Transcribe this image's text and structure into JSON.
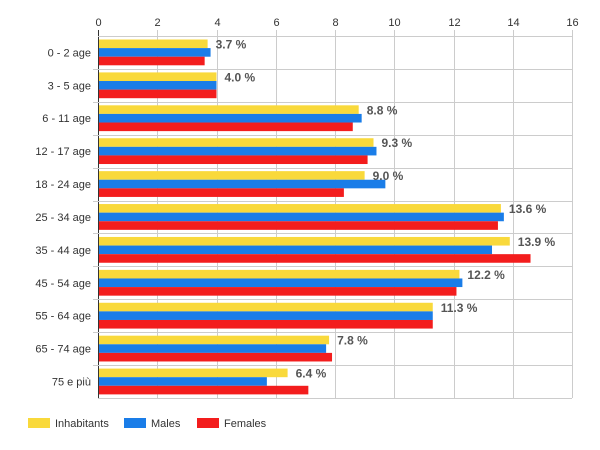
{
  "chart_data": {
    "type": "bar",
    "orientation": "horizontal",
    "categories": [
      "0 - 2 age",
      "3 - 5 age",
      "6 - 11 age",
      "12 - 17 age",
      "18 - 24 age",
      "25 - 34 age",
      "35 - 44 age",
      "45 - 54 age",
      "55 - 64 age",
      "65 - 74 age",
      "75 e più"
    ],
    "series": [
      {
        "name": "Inhabitants",
        "color": "#f9d93b",
        "values": [
          3.7,
          4.0,
          8.8,
          9.3,
          9.0,
          13.6,
          13.9,
          12.2,
          11.3,
          7.8,
          6.4
        ]
      },
      {
        "name": "Males",
        "color": "#1a7de8",
        "values": [
          3.8,
          4.0,
          8.9,
          9.4,
          9.7,
          13.7,
          13.3,
          12.3,
          11.3,
          7.7,
          5.7
        ]
      },
      {
        "name": "Females",
        "color": "#f31d1d",
        "values": [
          3.6,
          4.0,
          8.6,
          9.1,
          8.3,
          13.5,
          14.6,
          12.1,
          11.3,
          7.9,
          7.1
        ]
      }
    ],
    "data_labels": [
      "3.7 %",
      "4.0 %",
      "8.8 %",
      "9.3 %",
      "9.0 %",
      "13.6 %",
      "13.9 %",
      "12.2 %",
      "11.3 %",
      "7.8 %",
      "6.4 %"
    ],
    "xlim": [
      0,
      16
    ],
    "x_ticks": [
      0,
      2,
      4,
      6,
      8,
      10,
      12,
      14,
      16
    ],
    "x_axis_position": "top",
    "grid": true,
    "legend": "bottom-left",
    "title": "",
    "xlabel": "",
    "ylabel": ""
  }
}
